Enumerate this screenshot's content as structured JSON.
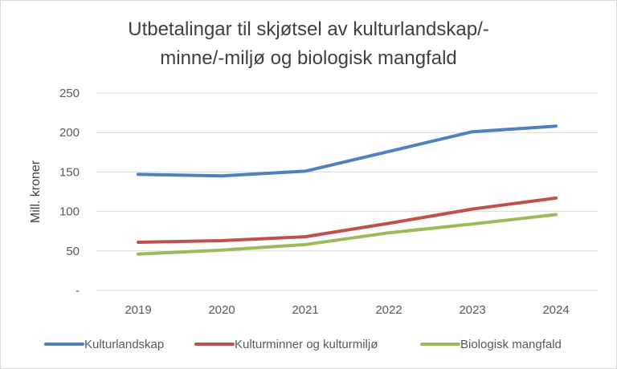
{
  "chart_data": {
    "type": "line",
    "title_lines": [
      "Utbetalingar til skjøtsel av kulturlandskap/-",
      "minne/-miljø og biologisk mangfald"
    ],
    "xlabel": "",
    "ylabel": "Mill. kroner",
    "x": [
      "2019",
      "2020",
      "2021",
      "2022",
      "2023",
      "2024"
    ],
    "ylim": [
      0,
      250
    ],
    "yticks": [
      0,
      50,
      100,
      150,
      200,
      250
    ],
    "ytick_labels": [
      "-",
      "50",
      "100",
      "150",
      "200",
      "250"
    ],
    "grid": true,
    "legend_position": "bottom",
    "series": [
      {
        "name": "Kulturlandskap",
        "color": "#4f81bd",
        "values": [
          147,
          145,
          151,
          176,
          201,
          208
        ]
      },
      {
        "name": "Kulturminner og kulturmiljø",
        "color": "#c0504d",
        "values": [
          61,
          63,
          68,
          85,
          103,
          117
        ]
      },
      {
        "name": "Biologisk mangfald",
        "color": "#9bbb59",
        "values": [
          46,
          51,
          58,
          73,
          84,
          96
        ]
      }
    ]
  },
  "colors": {
    "grid": "#d9d9d9",
    "text": "#595959",
    "title": "#404040",
    "border": "#d9d9d9"
  }
}
